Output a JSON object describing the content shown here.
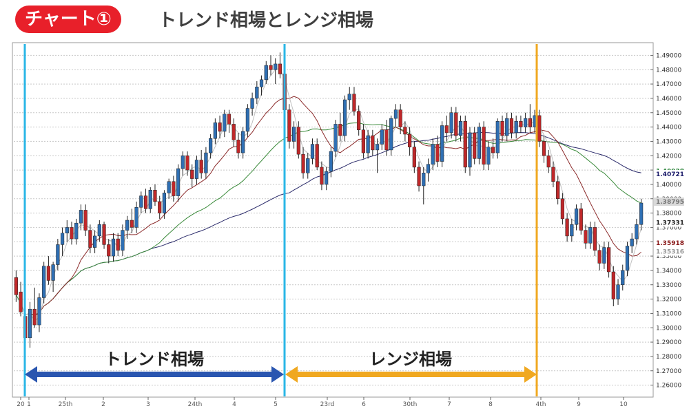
{
  "header": {
    "badge": "チャート①",
    "title": "トレンド相場とレンジ相場"
  },
  "chart_data": {
    "type": "candlestick",
    "ylim": [
      1.255,
      1.495
    ],
    "y_ticks": [
      "1.49000",
      "1.48000",
      "1.47000",
      "1.46000",
      "1.45000",
      "1.44000",
      "1.43000",
      "1.42000",
      "1.41000",
      "1.40000",
      "1.39000",
      "1.38000",
      "1.37000",
      "1.36000",
      "1.35000",
      "1.34000",
      "1.33000",
      "1.32000",
      "1.31000",
      "1.30000",
      "1.29000",
      "1.28000",
      "1.27000",
      "1.26000"
    ],
    "x_ticks": [
      "20",
      "1",
      "25th",
      "2",
      "3",
      "24th",
      "4",
      "5",
      "23rd",
      "6",
      "30th",
      "7",
      "8",
      "4th",
      "9",
      "10"
    ],
    "price_markers": [
      {
        "label": "1.40928",
        "value": 1.40928,
        "color": "#1a7a2a"
      },
      {
        "label": "1.40721",
        "value": 1.40721,
        "color": "#1a1a6a"
      },
      {
        "label": "1.38795",
        "value": 1.38795,
        "color": "#777777"
      },
      {
        "label": "1.37331",
        "value": 1.37331,
        "color": "#222222"
      },
      {
        "label": "1.35918",
        "value": 1.35918,
        "color": "#8a1a1a"
      },
      {
        "label": "1.35316",
        "value": 1.35316,
        "color": "#999999"
      }
    ],
    "phases": [
      {
        "label": "トレンド相場",
        "arrow_color": "#2a56b0"
      },
      {
        "label": "レンジ相場",
        "arrow_color": "#f0a820"
      }
    ],
    "divider_colors": {
      "trend_start": "#29b6e6",
      "range_start": "#29b6e6",
      "range_end": "#f0a820"
    },
    "candle_colors": {
      "up": "#2f6fb3",
      "down": "#c0282a"
    },
    "ma_colors": {
      "ma_short": "#c0c0c0",
      "ma_mid": "#8b2a2a",
      "ma_long": "#3a8a3a",
      "ma_vlong": "#2a2a6a"
    },
    "candles": [
      {
        "o": 1.335,
        "h": 1.34,
        "l": 1.318,
        "c": 1.323
      },
      {
        "o": 1.325,
        "h": 1.332,
        "l": 1.308,
        "c": 1.311
      },
      {
        "o": 1.308,
        "h": 1.312,
        "l": 1.288,
        "c": 1.293
      },
      {
        "o": 1.293,
        "h": 1.318,
        "l": 1.286,
        "c": 1.313
      },
      {
        "o": 1.313,
        "h": 1.328,
        "l": 1.3,
        "c": 1.302
      },
      {
        "o": 1.302,
        "h": 1.324,
        "l": 1.297,
        "c": 1.321
      },
      {
        "o": 1.321,
        "h": 1.346,
        "l": 1.317,
        "c": 1.343
      },
      {
        "o": 1.343,
        "h": 1.35,
        "l": 1.33,
        "c": 1.333
      },
      {
        "o": 1.333,
        "h": 1.346,
        "l": 1.325,
        "c": 1.344
      },
      {
        "o": 1.344,
        "h": 1.362,
        "l": 1.34,
        "c": 1.358
      },
      {
        "o": 1.358,
        "h": 1.37,
        "l": 1.35,
        "c": 1.366
      },
      {
        "o": 1.366,
        "h": 1.375,
        "l": 1.36,
        "c": 1.37
      },
      {
        "o": 1.37,
        "h": 1.374,
        "l": 1.358,
        "c": 1.362
      },
      {
        "o": 1.362,
        "h": 1.376,
        "l": 1.358,
        "c": 1.373
      },
      {
        "o": 1.373,
        "h": 1.386,
        "l": 1.368,
        "c": 1.382
      },
      {
        "o": 1.382,
        "h": 1.386,
        "l": 1.364,
        "c": 1.368
      },
      {
        "o": 1.368,
        "h": 1.372,
        "l": 1.352,
        "c": 1.356
      },
      {
        "o": 1.356,
        "h": 1.368,
        "l": 1.352,
        "c": 1.364
      },
      {
        "o": 1.364,
        "h": 1.375,
        "l": 1.36,
        "c": 1.372
      },
      {
        "o": 1.372,
        "h": 1.374,
        "l": 1.355,
        "c": 1.358
      },
      {
        "o": 1.358,
        "h": 1.362,
        "l": 1.345,
        "c": 1.35
      },
      {
        "o": 1.35,
        "h": 1.366,
        "l": 1.346,
        "c": 1.362
      },
      {
        "o": 1.362,
        "h": 1.366,
        "l": 1.35,
        "c": 1.354
      },
      {
        "o": 1.354,
        "h": 1.372,
        "l": 1.35,
        "c": 1.368
      },
      {
        "o": 1.368,
        "h": 1.378,
        "l": 1.362,
        "c": 1.375
      },
      {
        "o": 1.375,
        "h": 1.383,
        "l": 1.366,
        "c": 1.37
      },
      {
        "o": 1.37,
        "h": 1.388,
        "l": 1.366,
        "c": 1.384
      },
      {
        "o": 1.384,
        "h": 1.395,
        "l": 1.38,
        "c": 1.392
      },
      {
        "o": 1.392,
        "h": 1.397,
        "l": 1.38,
        "c": 1.383
      },
      {
        "o": 1.383,
        "h": 1.398,
        "l": 1.38,
        "c": 1.396
      },
      {
        "o": 1.396,
        "h": 1.4,
        "l": 1.385,
        "c": 1.388
      },
      {
        "o": 1.388,
        "h": 1.392,
        "l": 1.376,
        "c": 1.38
      },
      {
        "o": 1.38,
        "h": 1.396,
        "l": 1.376,
        "c": 1.394
      },
      {
        "o": 1.394,
        "h": 1.404,
        "l": 1.39,
        "c": 1.402
      },
      {
        "o": 1.402,
        "h": 1.406,
        "l": 1.388,
        "c": 1.392
      },
      {
        "o": 1.392,
        "h": 1.414,
        "l": 1.388,
        "c": 1.411
      },
      {
        "o": 1.411,
        "h": 1.423,
        "l": 1.406,
        "c": 1.42
      },
      {
        "o": 1.42,
        "h": 1.423,
        "l": 1.406,
        "c": 1.41
      },
      {
        "o": 1.41,
        "h": 1.414,
        "l": 1.398,
        "c": 1.404
      },
      {
        "o": 1.404,
        "h": 1.42,
        "l": 1.4,
        "c": 1.417
      },
      {
        "o": 1.417,
        "h": 1.424,
        "l": 1.404,
        "c": 1.408
      },
      {
        "o": 1.408,
        "h": 1.426,
        "l": 1.404,
        "c": 1.422
      },
      {
        "o": 1.422,
        "h": 1.435,
        "l": 1.418,
        "c": 1.432
      },
      {
        "o": 1.432,
        "h": 1.446,
        "l": 1.428,
        "c": 1.443
      },
      {
        "o": 1.443,
        "h": 1.448,
        "l": 1.432,
        "c": 1.437
      },
      {
        "o": 1.437,
        "h": 1.452,
        "l": 1.433,
        "c": 1.449
      },
      {
        "o": 1.449,
        "h": 1.452,
        "l": 1.436,
        "c": 1.442
      },
      {
        "o": 1.442,
        "h": 1.446,
        "l": 1.426,
        "c": 1.431
      },
      {
        "o": 1.431,
        "h": 1.436,
        "l": 1.418,
        "c": 1.422
      },
      {
        "o": 1.422,
        "h": 1.44,
        "l": 1.418,
        "c": 1.437
      },
      {
        "o": 1.437,
        "h": 1.456,
        "l": 1.433,
        "c": 1.453
      },
      {
        "o": 1.453,
        "h": 1.464,
        "l": 1.448,
        "c": 1.46
      },
      {
        "o": 1.46,
        "h": 1.472,
        "l": 1.456,
        "c": 1.468
      },
      {
        "o": 1.468,
        "h": 1.476,
        "l": 1.462,
        "c": 1.473
      },
      {
        "o": 1.473,
        "h": 1.486,
        "l": 1.47,
        "c": 1.483
      },
      {
        "o": 1.483,
        "h": 1.49,
        "l": 1.476,
        "c": 1.48
      },
      {
        "o": 1.48,
        "h": 1.488,
        "l": 1.47,
        "c": 1.484
      },
      {
        "o": 1.484,
        "h": 1.492,
        "l": 1.474,
        "c": 1.477
      },
      {
        "o": 1.477,
        "h": 1.481,
        "l": 1.448,
        "c": 1.452
      },
      {
        "o": 1.452,
        "h": 1.456,
        "l": 1.425,
        "c": 1.43
      },
      {
        "o": 1.43,
        "h": 1.444,
        "l": 1.425,
        "c": 1.44
      },
      {
        "o": 1.44,
        "h": 1.444,
        "l": 1.418,
        "c": 1.421
      },
      {
        "o": 1.421,
        "h": 1.426,
        "l": 1.404,
        "c": 1.408
      },
      {
        "o": 1.408,
        "h": 1.422,
        "l": 1.404,
        "c": 1.418
      },
      {
        "o": 1.418,
        "h": 1.432,
        "l": 1.414,
        "c": 1.428
      },
      {
        "o": 1.428,
        "h": 1.432,
        "l": 1.41,
        "c": 1.412
      },
      {
        "o": 1.412,
        "h": 1.416,
        "l": 1.396,
        "c": 1.4
      },
      {
        "o": 1.4,
        "h": 1.412,
        "l": 1.396,
        "c": 1.409
      },
      {
        "o": 1.409,
        "h": 1.426,
        "l": 1.405,
        "c": 1.423
      },
      {
        "o": 1.423,
        "h": 1.445,
        "l": 1.419,
        "c": 1.442
      },
      {
        "o": 1.442,
        "h": 1.45,
        "l": 1.43,
        "c": 1.434
      },
      {
        "o": 1.434,
        "h": 1.462,
        "l": 1.43,
        "c": 1.459
      },
      {
        "o": 1.459,
        "h": 1.468,
        "l": 1.452,
        "c": 1.463
      },
      {
        "o": 1.463,
        "h": 1.468,
        "l": 1.448,
        "c": 1.451
      },
      {
        "o": 1.451,
        "h": 1.455,
        "l": 1.434,
        "c": 1.438
      },
      {
        "o": 1.438,
        "h": 1.442,
        "l": 1.418,
        "c": 1.422
      },
      {
        "o": 1.422,
        "h": 1.438,
        "l": 1.418,
        "c": 1.434
      },
      {
        "o": 1.434,
        "h": 1.438,
        "l": 1.42,
        "c": 1.424
      },
      {
        "o": 1.424,
        "h": 1.432,
        "l": 1.408,
        "c": 1.428
      },
      {
        "o": 1.428,
        "h": 1.442,
        "l": 1.424,
        "c": 1.438
      },
      {
        "o": 1.438,
        "h": 1.445,
        "l": 1.42,
        "c": 1.424
      },
      {
        "o": 1.424,
        "h": 1.448,
        "l": 1.42,
        "c": 1.446
      },
      {
        "o": 1.446,
        "h": 1.456,
        "l": 1.44,
        "c": 1.452
      },
      {
        "o": 1.452,
        "h": 1.456,
        "l": 1.435,
        "c": 1.44
      },
      {
        "o": 1.44,
        "h": 1.444,
        "l": 1.43,
        "c": 1.435
      },
      {
        "o": 1.435,
        "h": 1.44,
        "l": 1.42,
        "c": 1.426
      },
      {
        "o": 1.426,
        "h": 1.43,
        "l": 1.408,
        "c": 1.412
      },
      {
        "o": 1.412,
        "h": 1.416,
        "l": 1.395,
        "c": 1.399
      },
      {
        "o": 1.399,
        "h": 1.412,
        "l": 1.386,
        "c": 1.408
      },
      {
        "o": 1.408,
        "h": 1.418,
        "l": 1.402,
        "c": 1.414
      },
      {
        "o": 1.414,
        "h": 1.432,
        "l": 1.41,
        "c": 1.428
      },
      {
        "o": 1.428,
        "h": 1.434,
        "l": 1.412,
        "c": 1.416
      },
      {
        "o": 1.416,
        "h": 1.444,
        "l": 1.412,
        "c": 1.441
      },
      {
        "o": 1.441,
        "h": 1.448,
        "l": 1.43,
        "c": 1.436
      },
      {
        "o": 1.436,
        "h": 1.454,
        "l": 1.432,
        "c": 1.45
      },
      {
        "o": 1.45,
        "h": 1.454,
        "l": 1.43,
        "c": 1.434
      },
      {
        "o": 1.434,
        "h": 1.448,
        "l": 1.43,
        "c": 1.444
      },
      {
        "o": 1.444,
        "h": 1.448,
        "l": 1.408,
        "c": 1.412
      },
      {
        "o": 1.412,
        "h": 1.44,
        "l": 1.406,
        "c": 1.436
      },
      {
        "o": 1.436,
        "h": 1.44,
        "l": 1.414,
        "c": 1.418
      },
      {
        "o": 1.418,
        "h": 1.443,
        "l": 1.414,
        "c": 1.44
      },
      {
        "o": 1.44,
        "h": 1.444,
        "l": 1.41,
        "c": 1.414
      },
      {
        "o": 1.414,
        "h": 1.43,
        "l": 1.41,
        "c": 1.426
      },
      {
        "o": 1.426,
        "h": 1.432,
        "l": 1.418,
        "c": 1.422
      },
      {
        "o": 1.422,
        "h": 1.446,
        "l": 1.418,
        "c": 1.444
      },
      {
        "o": 1.444,
        "h": 1.448,
        "l": 1.43,
        "c": 1.434
      },
      {
        "o": 1.434,
        "h": 1.45,
        "l": 1.43,
        "c": 1.446
      },
      {
        "o": 1.446,
        "h": 1.45,
        "l": 1.432,
        "c": 1.436
      },
      {
        "o": 1.436,
        "h": 1.448,
        "l": 1.432,
        "c": 1.444
      },
      {
        "o": 1.444,
        "h": 1.448,
        "l": 1.436,
        "c": 1.44
      },
      {
        "o": 1.44,
        "h": 1.45,
        "l": 1.436,
        "c": 1.446
      },
      {
        "o": 1.446,
        "h": 1.456,
        "l": 1.436,
        "c": 1.44
      },
      {
        "o": 1.44,
        "h": 1.452,
        "l": 1.436,
        "c": 1.448
      },
      {
        "o": 1.448,
        "h": 1.452,
        "l": 1.426,
        "c": 1.43
      },
      {
        "o": 1.43,
        "h": 1.434,
        "l": 1.415,
        "c": 1.42
      },
      {
        "o": 1.42,
        "h": 1.424,
        "l": 1.408,
        "c": 1.412
      },
      {
        "o": 1.412,
        "h": 1.416,
        "l": 1.398,
        "c": 1.402
      },
      {
        "o": 1.402,
        "h": 1.406,
        "l": 1.386,
        "c": 1.39
      },
      {
        "o": 1.39,
        "h": 1.394,
        "l": 1.372,
        "c": 1.376
      },
      {
        "o": 1.376,
        "h": 1.38,
        "l": 1.36,
        "c": 1.364
      },
      {
        "o": 1.364,
        "h": 1.376,
        "l": 1.36,
        "c": 1.372
      },
      {
        "o": 1.372,
        "h": 1.386,
        "l": 1.368,
        "c": 1.383
      },
      {
        "o": 1.383,
        "h": 1.387,
        "l": 1.365,
        "c": 1.368
      },
      {
        "o": 1.368,
        "h": 1.372,
        "l": 1.355,
        "c": 1.359
      },
      {
        "o": 1.359,
        "h": 1.374,
        "l": 1.355,
        "c": 1.37
      },
      {
        "o": 1.37,
        "h": 1.374,
        "l": 1.35,
        "c": 1.354
      },
      {
        "o": 1.354,
        "h": 1.358,
        "l": 1.34,
        "c": 1.345
      },
      {
        "o": 1.345,
        "h": 1.36,
        "l": 1.341,
        "c": 1.356
      },
      {
        "o": 1.356,
        "h": 1.36,
        "l": 1.335,
        "c": 1.339
      },
      {
        "o": 1.339,
        "h": 1.343,
        "l": 1.315,
        "c": 1.32
      },
      {
        "o": 1.32,
        "h": 1.334,
        "l": 1.316,
        "c": 1.33
      },
      {
        "o": 1.33,
        "h": 1.344,
        "l": 1.326,
        "c": 1.34
      },
      {
        "o": 1.34,
        "h": 1.36,
        "l": 1.336,
        "c": 1.357
      },
      {
        "o": 1.357,
        "h": 1.366,
        "l": 1.352,
        "c": 1.362
      },
      {
        "o": 1.362,
        "h": 1.376,
        "l": 1.358,
        "c": 1.372
      },
      {
        "o": 1.372,
        "h": 1.39,
        "l": 1.368,
        "c": 1.387
      }
    ]
  }
}
